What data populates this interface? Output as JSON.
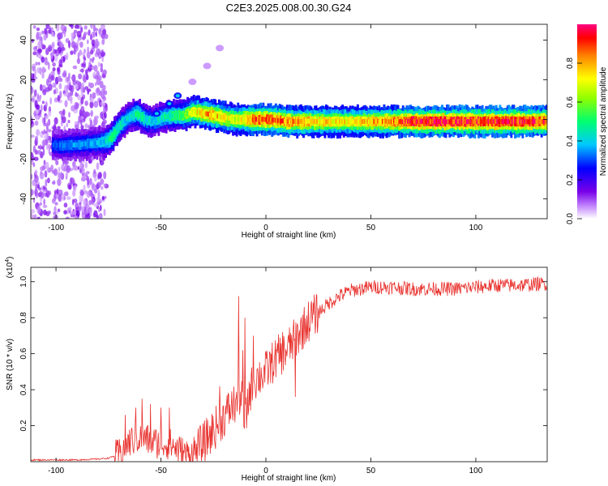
{
  "figure": {
    "title": "C2E3.2025.008.00.30.G24"
  },
  "chart_data": [
    {
      "type": "heatmap",
      "xlabel": "Height of straight line (km)",
      "ylabel": "Frequency (Hz)",
      "xlim": [
        -112,
        134
      ],
      "ylim": [
        -50,
        48
      ],
      "xticks": [
        -100,
        -50,
        0,
        50,
        100
      ],
      "yticks": [
        -40,
        -20,
        0,
        20,
        40
      ],
      "colorbar": {
        "label": "Normalized spectral amplitude",
        "range": [
          0,
          1
        ],
        "ticks": [
          "0.0",
          "0.2",
          "0.4",
          "0.6",
          "0.8"
        ],
        "tick_values": [
          0.0,
          0.2,
          0.4,
          0.6,
          0.8
        ],
        "colormap": "rainbow (white-purple-blue-cyan-green-yellow-orange-red-magenta)"
      },
      "ridge": {
        "x": [
          -102,
          -95,
          -88,
          -82,
          -77,
          -74,
          -70,
          -66,
          -62,
          -58,
          -54,
          -50,
          -45,
          -40,
          -35,
          -30,
          -25,
          -20,
          -15,
          -10,
          -5,
          0,
          10,
          20,
          30,
          40,
          50,
          60,
          70,
          80,
          90,
          100,
          110,
          120,
          134
        ],
        "frequency": [
          -13,
          -13,
          -12.5,
          -12,
          -11,
          -9,
          -3,
          1,
          3,
          0,
          -1,
          1,
          2,
          2,
          4,
          3,
          2,
          1,
          0,
          0,
          0,
          0,
          -1,
          -1,
          -1,
          -1,
          -1,
          -1,
          -1,
          -1,
          -1,
          -1,
          -1,
          -1,
          -1
        ],
        "amplitude": [
          0.3,
          0.35,
          0.35,
          0.35,
          0.4,
          0.5,
          0.45,
          0.4,
          0.5,
          0.45,
          0.4,
          0.45,
          0.5,
          0.55,
          0.7,
          0.8,
          0.8,
          0.75,
          0.7,
          0.8,
          0.9,
          0.9,
          0.85,
          0.8,
          0.75,
          0.75,
          0.8,
          0.85,
          0.95,
          0.95,
          0.95,
          0.95,
          0.95,
          0.95,
          0.9
        ]
      },
      "branch": {
        "x": [
          -52,
          -46,
          -42,
          -35,
          -28,
          -22
        ],
        "frequency": [
          3,
          8,
          12,
          19,
          27,
          36
        ]
      }
    },
    {
      "type": "line",
      "xlabel": "Height of straight line (km)",
      "ylabel": "SNR (10 * v/v)",
      "y_multiplier": "(x10",
      "y_multiplier_exp": "4",
      "y_multiplier_close": ")",
      "xlim": [
        -112,
        134
      ],
      "ylim": [
        0,
        1.08
      ],
      "xticks": [
        -100,
        -50,
        0,
        50,
        100
      ],
      "yticks": [
        "0.2",
        "0.4",
        "0.6",
        "0.8",
        "1.0"
      ],
      "ytick_values": [
        0.2,
        0.4,
        0.6,
        0.8,
        1.0
      ],
      "series_color": "#e8322e",
      "envelope": {
        "x": [
          -112,
          -90,
          -80,
          -75,
          -70,
          -66,
          -62,
          -58,
          -54,
          -50,
          -46,
          -42,
          -38,
          -34,
          -30,
          -26,
          -22,
          -18,
          -14,
          -12,
          -10,
          -8,
          -5,
          0,
          5,
          10,
          15,
          20,
          25,
          30,
          35,
          40,
          45,
          50,
          60,
          70,
          80,
          90,
          100,
          110,
          120,
          134
        ],
        "y": [
          0.01,
          0.01,
          0.015,
          0.02,
          0.04,
          0.1,
          0.13,
          0.13,
          0.11,
          0.1,
          0.1,
          0.07,
          0.04,
          0.05,
          0.1,
          0.16,
          0.22,
          0.28,
          0.33,
          0.38,
          0.2,
          0.38,
          0.46,
          0.5,
          0.58,
          0.62,
          0.7,
          0.78,
          0.83,
          0.88,
          0.92,
          0.95,
          0.96,
          0.97,
          0.97,
          0.96,
          0.96,
          0.96,
          0.97,
          0.98,
          0.98,
          0.99
        ]
      },
      "spikes": [
        {
          "x": -67,
          "y": 0.26
        },
        {
          "x": -62,
          "y": 0.3
        },
        {
          "x": -59,
          "y": 0.35
        },
        {
          "x": -55,
          "y": 0.32
        },
        {
          "x": -50,
          "y": 0.3
        },
        {
          "x": -46,
          "y": 0.3
        },
        {
          "x": -22,
          "y": 0.42
        },
        {
          "x": -13,
          "y": 0.92
        },
        {
          "x": -11,
          "y": 0.62
        },
        {
          "x": -10,
          "y": 0.8
        },
        {
          "x": -6,
          "y": 0.7
        },
        {
          "x": 5,
          "y": 0.62
        },
        {
          "x": 8,
          "y": 0.72
        },
        {
          "x": 14,
          "y": 0.36
        },
        {
          "x": 20,
          "y": 0.76
        }
      ]
    }
  ]
}
